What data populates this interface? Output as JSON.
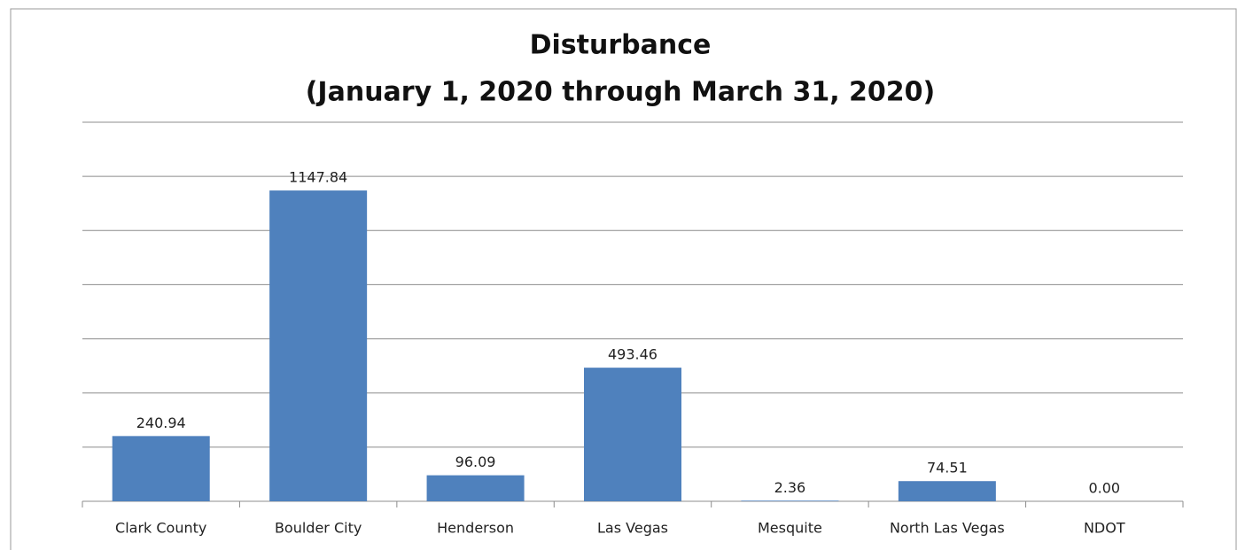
{
  "chart_data": {
    "type": "bar",
    "title": "Disturbance",
    "subtitle": "(January 1, 2020 through March 31, 2020)",
    "categories": [
      "Clark County",
      "Boulder City",
      "Henderson",
      "Las Vegas",
      "Mesquite",
      "North Las Vegas",
      "NDOT"
    ],
    "values": [
      240.94,
      1147.84,
      96.09,
      493.46,
      2.36,
      74.51,
      0
    ],
    "value_labels": [
      "240.94",
      "1147.84",
      "96.09",
      "493.46",
      "2.36",
      "74.51",
      "0.00"
    ],
    "color": "#4f81bd",
    "ylim": [
      0,
      1400
    ],
    "yticks": [
      0,
      200,
      400,
      600,
      800,
      1000,
      1200,
      1400
    ],
    "grid": true
  }
}
